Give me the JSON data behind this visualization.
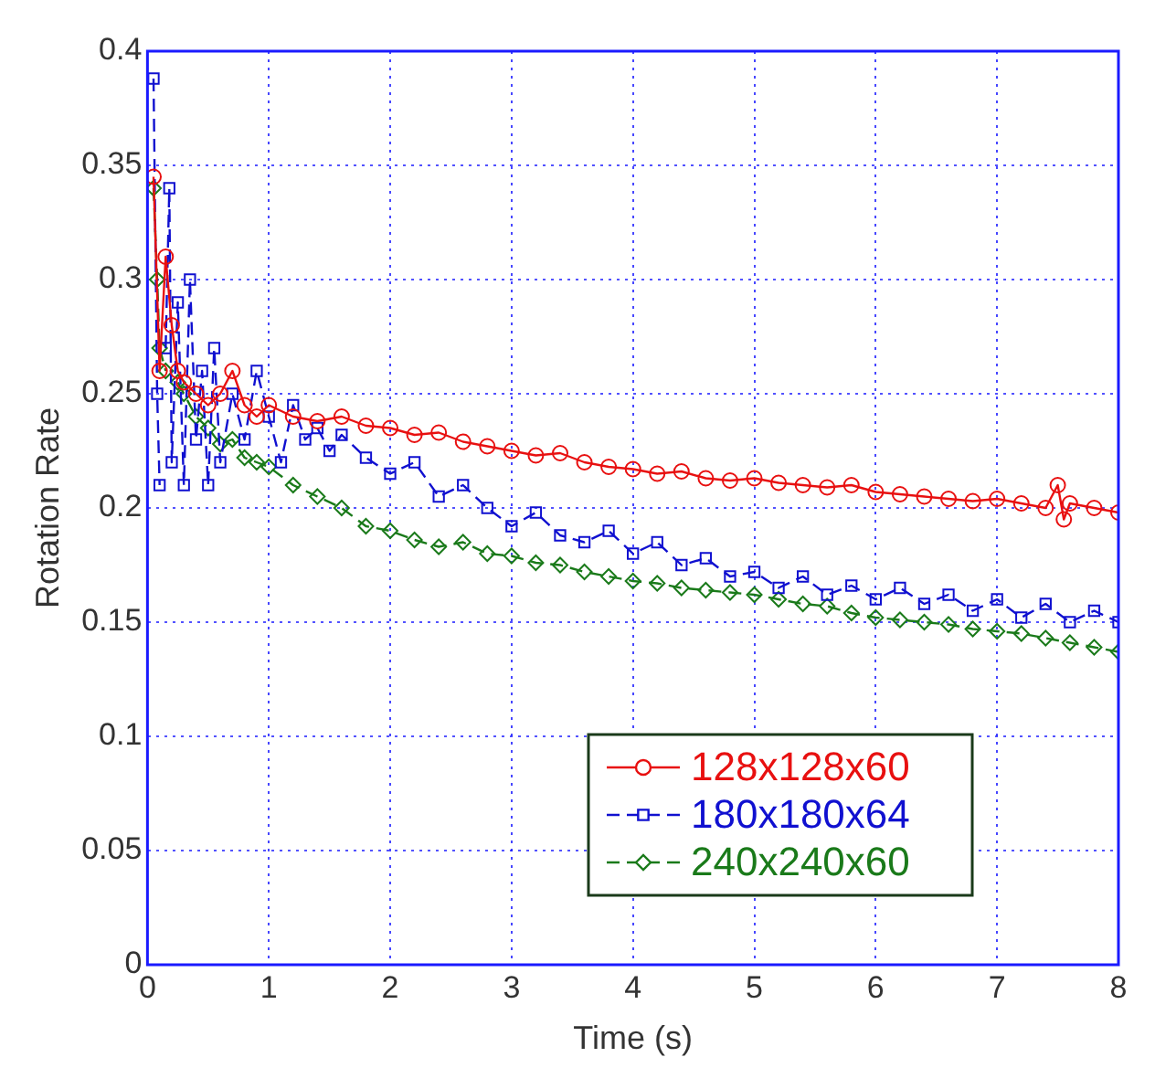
{
  "chart_data": {
    "type": "line",
    "xlabel": "Time (s)",
    "ylabel": "Rotation Rate",
    "xlim": [
      0,
      8
    ],
    "xticks": [
      0,
      1,
      2,
      3,
      4,
      5,
      6,
      7,
      8
    ],
    "ylim": [
      0,
      0.4
    ],
    "yticks": [
      0,
      0.05,
      0.1,
      0.15,
      0.2,
      0.25,
      0.3,
      0.35,
      0.4
    ],
    "grid": true,
    "legend": "bottom right",
    "series": [
      {
        "name": "128x128x60",
        "color": "#e81010",
        "marker": "circle",
        "line_style": "solid",
        "x": [
          0.05,
          0.1,
          0.15,
          0.2,
          0.25,
          0.3,
          0.4,
          0.5,
          0.6,
          0.7,
          0.8,
          0.9,
          1.0,
          1.2,
          1.4,
          1.6,
          1.8,
          2.0,
          2.2,
          2.4,
          2.6,
          2.8,
          3.0,
          3.2,
          3.4,
          3.6,
          3.8,
          4.0,
          4.2,
          4.4,
          4.6,
          4.8,
          5.0,
          5.2,
          5.4,
          5.6,
          5.8,
          6.0,
          6.2,
          6.4,
          6.6,
          6.8,
          7.0,
          7.2,
          7.4,
          7.5,
          7.55,
          7.6,
          7.8,
          8.0
        ],
        "values": [
          0.345,
          0.26,
          0.31,
          0.28,
          0.26,
          0.255,
          0.25,
          0.245,
          0.25,
          0.26,
          0.245,
          0.24,
          0.245,
          0.24,
          0.238,
          0.24,
          0.236,
          0.235,
          0.232,
          0.233,
          0.229,
          0.227,
          0.225,
          0.223,
          0.224,
          0.22,
          0.218,
          0.217,
          0.215,
          0.216,
          0.213,
          0.212,
          0.213,
          0.211,
          0.21,
          0.209,
          0.21,
          0.207,
          0.206,
          0.205,
          0.204,
          0.203,
          0.204,
          0.202,
          0.2,
          0.21,
          0.195,
          0.202,
          0.2,
          0.198
        ]
      },
      {
        "name": "180x180x64",
        "color": "#1010d0",
        "marker": "square",
        "line_style": "dashed",
        "x": [
          0.05,
          0.08,
          0.1,
          0.12,
          0.15,
          0.18,
          0.2,
          0.25,
          0.3,
          0.35,
          0.4,
          0.45,
          0.5,
          0.55,
          0.6,
          0.7,
          0.8,
          0.9,
          1.0,
          1.1,
          1.2,
          1.3,
          1.4,
          1.5,
          1.6,
          1.8,
          2.0,
          2.2,
          2.4,
          2.6,
          2.8,
          3.0,
          3.2,
          3.4,
          3.6,
          3.8,
          4.0,
          4.2,
          4.4,
          4.6,
          4.8,
          5.0,
          5.2,
          5.4,
          5.6,
          5.8,
          6.0,
          6.2,
          6.4,
          6.6,
          6.8,
          7.0,
          7.2,
          7.4,
          7.6,
          7.8,
          8.0
        ],
        "values": [
          0.388,
          0.25,
          0.21,
          null,
          0.27,
          0.34,
          0.22,
          0.29,
          0.21,
          0.3,
          0.23,
          0.26,
          0.21,
          0.27,
          0.22,
          0.25,
          0.23,
          0.26,
          0.24,
          0.22,
          0.245,
          0.23,
          0.235,
          0.225,
          0.232,
          0.222,
          0.215,
          0.22,
          0.205,
          0.21,
          0.2,
          0.192,
          0.198,
          0.188,
          0.185,
          0.19,
          0.18,
          0.185,
          0.175,
          0.178,
          0.17,
          0.172,
          0.165,
          0.17,
          0.162,
          0.166,
          0.16,
          0.165,
          0.158,
          0.162,
          0.155,
          0.16,
          0.152,
          0.158,
          0.15,
          0.155,
          0.15
        ]
      },
      {
        "name": "240x240x60",
        "color": "#1a7a1a",
        "marker": "diamond",
        "line_style": "dashed",
        "x": [
          0.05,
          0.08,
          0.1,
          0.15,
          0.2,
          0.25,
          0.3,
          0.4,
          0.5,
          0.6,
          0.7,
          0.8,
          0.9,
          1.0,
          1.2,
          1.4,
          1.6,
          1.8,
          2.0,
          2.2,
          2.4,
          2.6,
          2.8,
          3.0,
          3.2,
          3.4,
          3.6,
          3.8,
          4.0,
          4.2,
          4.4,
          4.6,
          4.8,
          5.0,
          5.2,
          5.4,
          5.6,
          5.8,
          6.0,
          6.2,
          6.4,
          6.6,
          6.8,
          7.0,
          7.2,
          7.4,
          7.6,
          7.8,
          8.0
        ],
        "values": [
          0.34,
          0.3,
          0.27,
          0.26,
          null,
          0.255,
          0.25,
          0.24,
          0.235,
          0.228,
          0.23,
          0.222,
          0.22,
          0.218,
          0.21,
          0.205,
          0.2,
          0.192,
          0.19,
          0.186,
          0.183,
          0.185,
          0.18,
          0.179,
          0.176,
          0.175,
          0.172,
          0.17,
          0.168,
          0.167,
          0.165,
          0.164,
          0.163,
          0.162,
          0.16,
          0.158,
          0.157,
          0.154,
          0.152,
          0.151,
          0.15,
          0.149,
          0.147,
          0.146,
          0.145,
          0.143,
          0.141,
          0.139,
          0.137
        ]
      }
    ]
  }
}
